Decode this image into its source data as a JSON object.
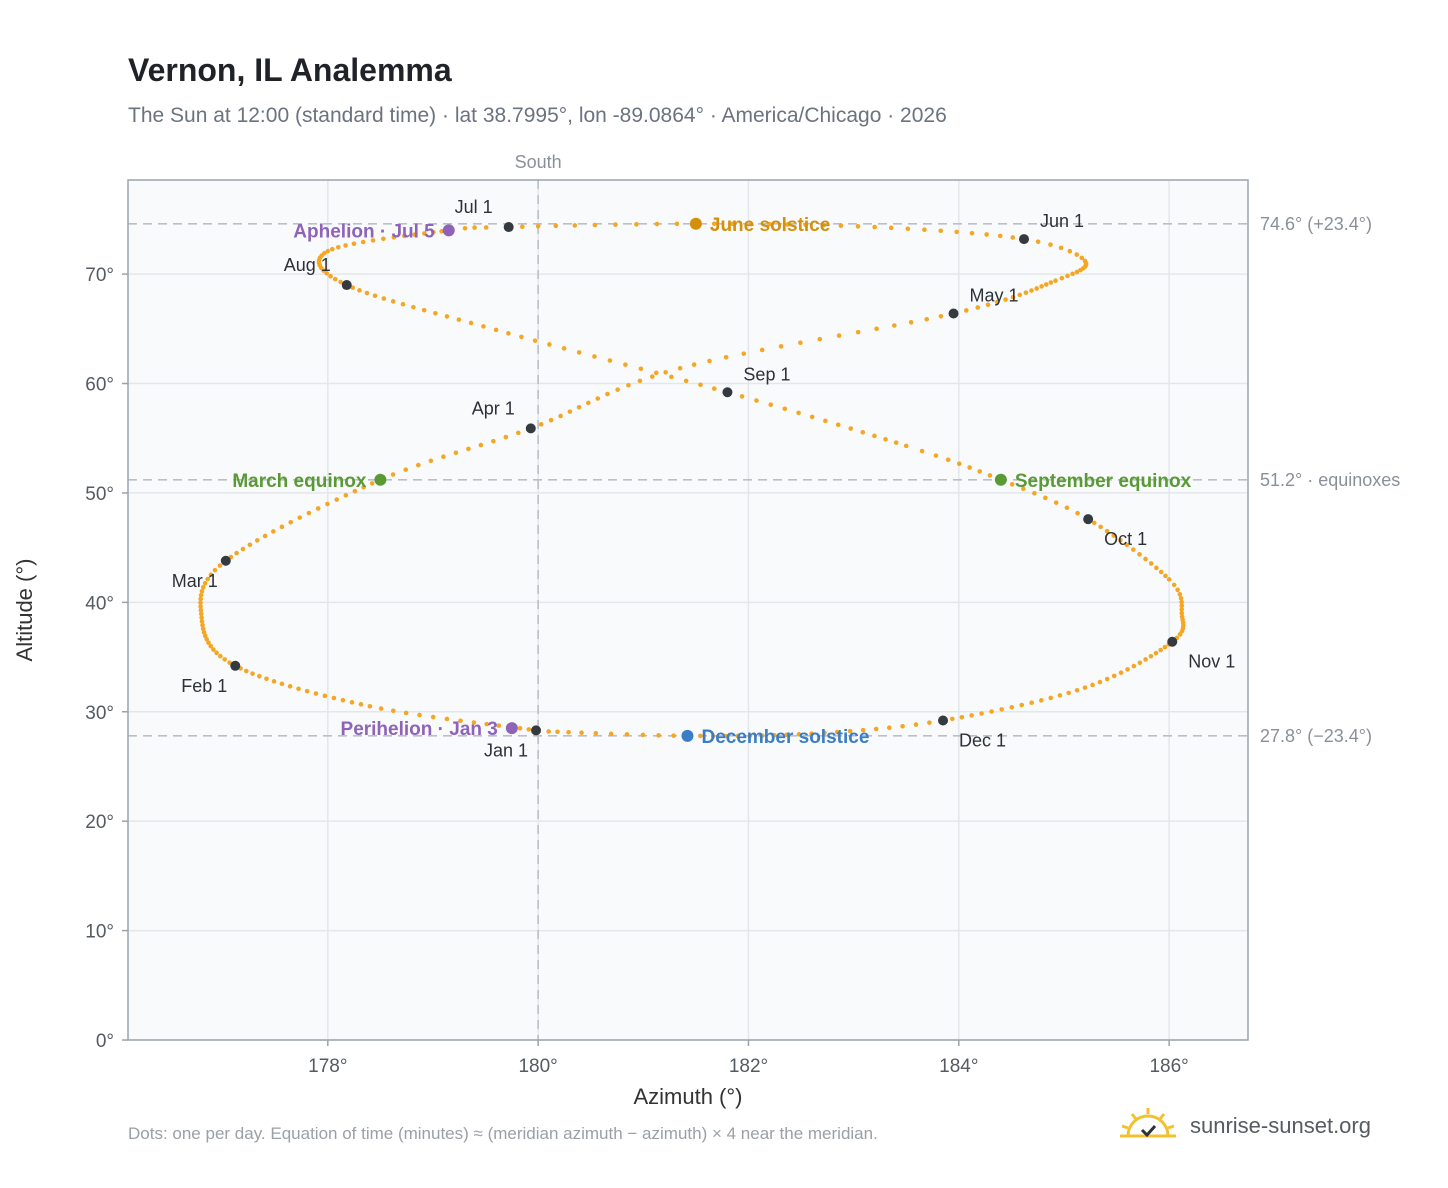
{
  "header": {
    "title": "Vernon, IL Analemma",
    "subtitle": "The Sun at 12:00 (standard time) · lat 38.7995°, lon -89.0864° · America/Chicago · 2026"
  },
  "footer": {
    "note": "Dots: one per day. Equation of time (minutes) ≈ (meridian azimuth − azimuth) × 4 near the meridian.",
    "brand": "sunrise-sunset.org"
  },
  "colors": {
    "analemma": "#f5a623",
    "month_dot": "#343a40",
    "aphelion": "#8e63b8",
    "perihelion": "#8e63b8",
    "june_solstice": "#d4900a",
    "december_solstice": "#3b7dc4",
    "equinox": "#5a9a35",
    "plot_bg": "#f8fafc",
    "grid": "#e3e7ec",
    "reference_line": "#b8c0c8"
  },
  "chart_data": {
    "type": "scatter",
    "title": "Vernon, IL Analemma",
    "xlabel": "Azimuth (°)",
    "ylabel": "Altitude (°)",
    "xlim": [
      176.1,
      186.75
    ],
    "ylim": [
      0,
      78.6
    ],
    "x_ticks": [
      178,
      180,
      182,
      184,
      186
    ],
    "x_tick_labels": [
      "178°",
      "180°",
      "182°",
      "184°",
      "186°"
    ],
    "y_ticks": [
      0,
      10,
      20,
      30,
      40,
      50,
      60,
      70
    ],
    "y_tick_labels": [
      "0°",
      "10°",
      "20°",
      "30°",
      "40°",
      "50°",
      "60°",
      "70°"
    ],
    "grid": true,
    "meridian": {
      "azimuth": 180,
      "label": "South"
    },
    "reference_lines": [
      {
        "altitude": 74.6,
        "label": "74.6° (+23.4°)"
      },
      {
        "altitude": 51.2,
        "label": "51.2° · equinoxes"
      },
      {
        "altitude": 27.8,
        "label": "27.8° (−23.4°)"
      }
    ],
    "series": [
      {
        "name": "",
        "style": "daily dots",
        "points": [
          {
            "day": 1,
            "az": 179.98,
            "alt": 28.3
          },
          {
            "day": 15,
            "az": 178.4,
            "alt": 30.5
          },
          {
            "day": 32,
            "az": 177.12,
            "alt": 34.2
          },
          {
            "day": 46,
            "az": 176.8,
            "alt": 38.6
          },
          {
            "day": 60,
            "az": 177.03,
            "alt": 43.8
          },
          {
            "day": 79,
            "az": 178.5,
            "alt": 51.2
          },
          {
            "day": 91,
            "az": 179.93,
            "alt": 55.9
          },
          {
            "day": 105,
            "az": 181.35,
            "alt": 61.4
          },
          {
            "day": 121,
            "az": 183.95,
            "alt": 66.4
          },
          {
            "day": 135,
            "az": 184.92,
            "alt": 69.4
          },
          {
            "day": 145,
            "az": 185.2,
            "alt": 71.2
          },
          {
            "day": 152,
            "az": 184.62,
            "alt": 73.2
          },
          {
            "day": 162,
            "az": 183.2,
            "alt": 74.3
          },
          {
            "day": 172,
            "az": 181.5,
            "alt": 74.6
          },
          {
            "day": 182,
            "az": 179.72,
            "alt": 74.3
          },
          {
            "day": 186,
            "az": 179.15,
            "alt": 74.0
          },
          {
            "day": 200,
            "az": 178.0,
            "alt": 72.1
          },
          {
            "day": 213,
            "az": 178.18,
            "alt": 69.0
          },
          {
            "day": 228,
            "az": 179.6,
            "alt": 64.9
          },
          {
            "day": 244,
            "az": 181.8,
            "alt": 59.2
          },
          {
            "day": 258,
            "az": 183.5,
            "alt": 54.3
          },
          {
            "day": 266,
            "az": 184.4,
            "alt": 51.2
          },
          {
            "day": 274,
            "az": 185.23,
            "alt": 47.6
          },
          {
            "day": 288,
            "az": 186.0,
            "alt": 42.1
          },
          {
            "day": 296,
            "az": 186.12,
            "alt": 39.0
          },
          {
            "day": 305,
            "az": 186.03,
            "alt": 36.4
          },
          {
            "day": 320,
            "az": 185.2,
            "alt": 32.2
          },
          {
            "day": 335,
            "az": 183.85,
            "alt": 29.2
          },
          {
            "day": 345,
            "az": 182.6,
            "alt": 28.0
          },
          {
            "day": 355,
            "az": 181.42,
            "alt": 27.8
          },
          {
            "day": 365,
            "az": 180.1,
            "alt": 28.2
          }
        ]
      }
    ],
    "month_markers": [
      {
        "label": "Jan 1",
        "az": 179.98,
        "alt": 28.3,
        "label_pos": "below-left"
      },
      {
        "label": "Feb 1",
        "az": 177.12,
        "alt": 34.2,
        "label_pos": "below-left"
      },
      {
        "label": "Mar 1",
        "az": 177.03,
        "alt": 43.8,
        "label_pos": "below-left"
      },
      {
        "label": "Apr 1",
        "az": 179.93,
        "alt": 55.9,
        "label_pos": "above-left"
      },
      {
        "label": "May 1",
        "az": 183.95,
        "alt": 66.4,
        "label_pos": "above-right"
      },
      {
        "label": "Jun 1",
        "az": 184.62,
        "alt": 73.2,
        "label_pos": "above-right"
      },
      {
        "label": "Jul 1",
        "az": 179.72,
        "alt": 74.3,
        "label_pos": "above-left"
      },
      {
        "label": "Aug 1",
        "az": 178.18,
        "alt": 69.0,
        "label_pos": "above-left"
      },
      {
        "label": "Sep 1",
        "az": 181.8,
        "alt": 59.2,
        "label_pos": "above-right"
      },
      {
        "label": "Oct 1",
        "az": 185.23,
        "alt": 47.6,
        "label_pos": "below-right"
      },
      {
        "label": "Nov 1",
        "az": 186.03,
        "alt": 36.4,
        "label_pos": "below-right"
      },
      {
        "label": "Dec 1",
        "az": 183.85,
        "alt": 29.2,
        "label_pos": "below-right"
      }
    ],
    "events": [
      {
        "label": "June solstice",
        "az": 181.5,
        "alt": 74.6,
        "color_key": "june_solstice",
        "label_pos": "right"
      },
      {
        "label": "Aphelion · Jul 5",
        "az": 179.15,
        "alt": 74.0,
        "color_key": "aphelion",
        "label_pos": "left"
      },
      {
        "label": "March equinox",
        "az": 178.5,
        "alt": 51.2,
        "color_key": "equinox",
        "label_pos": "left"
      },
      {
        "label": "September equinox",
        "az": 184.4,
        "alt": 51.2,
        "color_key": "equinox",
        "label_pos": "right"
      },
      {
        "label": "Perihelion · Jan 3",
        "az": 179.75,
        "alt": 28.5,
        "color_key": "perihelion",
        "label_pos": "left"
      },
      {
        "label": "December solstice",
        "az": 181.42,
        "alt": 27.8,
        "color_key": "december_solstice",
        "label_pos": "right"
      }
    ]
  }
}
